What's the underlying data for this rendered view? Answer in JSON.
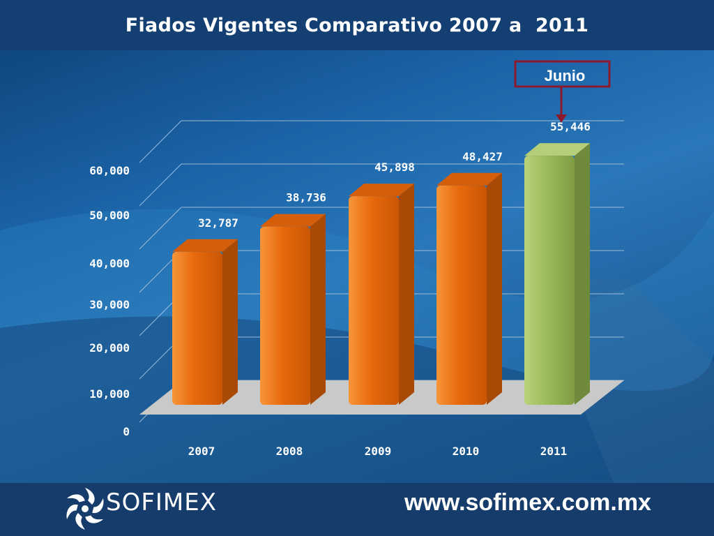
{
  "header": {
    "title": "Fiados Vigentes Comparativo 2007 a  2011"
  },
  "annotation": {
    "label": "Junio"
  },
  "footer": {
    "brand": "SOFIMEX",
    "website": "www.sofimex.com.mx"
  },
  "colors": {
    "bar": "#e8690c",
    "highlight_bar": "#9bbb59",
    "annotation": "#8b1a2e"
  },
  "chart_data": {
    "type": "bar",
    "title": "Fiados Vigentes Comparativo 2007 a  2011",
    "categories": [
      "2007",
      "2008",
      "2009",
      "2010",
      "2011"
    ],
    "values": [
      32787,
      38736,
      45898,
      48427,
      55446
    ],
    "value_labels": [
      "32,787",
      "38,736",
      "45,898",
      "48,427",
      "55,446"
    ],
    "yticks": [
      "0",
      "10,000",
      "20,000",
      "30,000",
      "40,000",
      "50,000",
      "60,000"
    ],
    "ylim": [
      0,
      60000
    ],
    "highlight_category": "2011",
    "grid": true,
    "legend": false
  }
}
